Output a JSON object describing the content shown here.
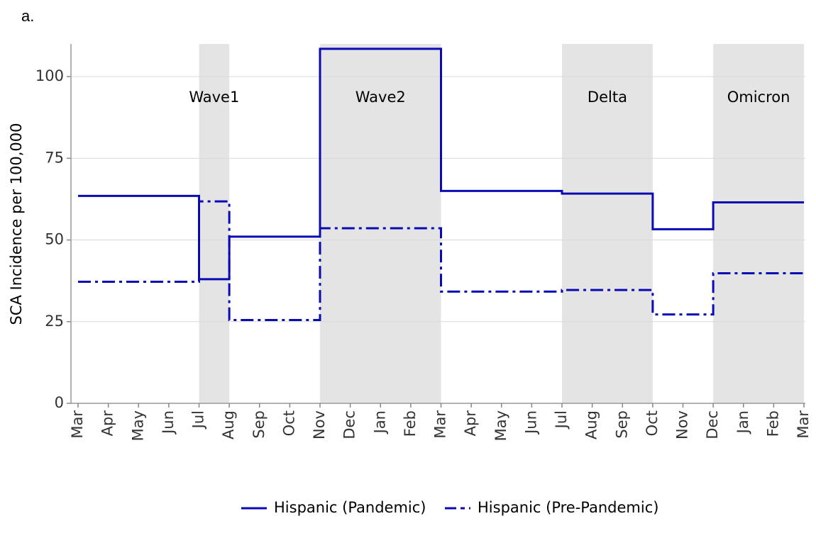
{
  "chart_data": {
    "type": "step",
    "panel_label": "a.",
    "y_label": "SCA Incidence per 100,000",
    "categories": [
      "Mar",
      "Apr",
      "May",
      "Jun",
      "Jul",
      "Aug",
      "Sep",
      "Oct",
      "Nov",
      "Dec",
      "Jan",
      "Feb",
      "Mar",
      "Apr",
      "May",
      "Jun",
      "Jul",
      "Aug",
      "Sep",
      "Oct",
      "Nov",
      "Dec",
      "Jan",
      "Feb",
      "Mar"
    ],
    "series": [
      {
        "name": "Hispanic (Pandemic)",
        "color": "#0a0ab4",
        "dash": "solid",
        "values": [
          63.5,
          63.5,
          63.5,
          63.5,
          38,
          51,
          51,
          51,
          108.5,
          108.5,
          108.5,
          108.5,
          65,
          65,
          65,
          65,
          64.2,
          64.2,
          64.2,
          53.3,
          53.3,
          61.5,
          61.5,
          61.5,
          61.5
        ]
      },
      {
        "name": "Hispanic (Pre-Pandemic)",
        "color": "#0a0ab4",
        "dash": "dashdot",
        "values": [
          37.2,
          37.2,
          37.2,
          37.2,
          61.8,
          25.5,
          25.5,
          25.5,
          53.6,
          53.6,
          53.6,
          53.6,
          34.2,
          34.2,
          34.2,
          34.2,
          34.7,
          34.7,
          34.7,
          27.2,
          27.2,
          39.8,
          39.8,
          39.8,
          39.8
        ]
      }
    ],
    "periods": [
      {
        "label": "Wave1",
        "from": 4,
        "to": 5
      },
      {
        "label": "Wave2",
        "from": 8,
        "to": 12
      },
      {
        "label": "Delta",
        "from": 16,
        "to": 19
      },
      {
        "label": "Omicron",
        "from": 21,
        "to": 24
      }
    ],
    "period_color": "#e4e4e4",
    "ylim": [
      0,
      110
    ],
    "yticks": [
      0,
      25,
      50,
      75,
      100
    ],
    "grid": true,
    "legend": "bottom"
  }
}
